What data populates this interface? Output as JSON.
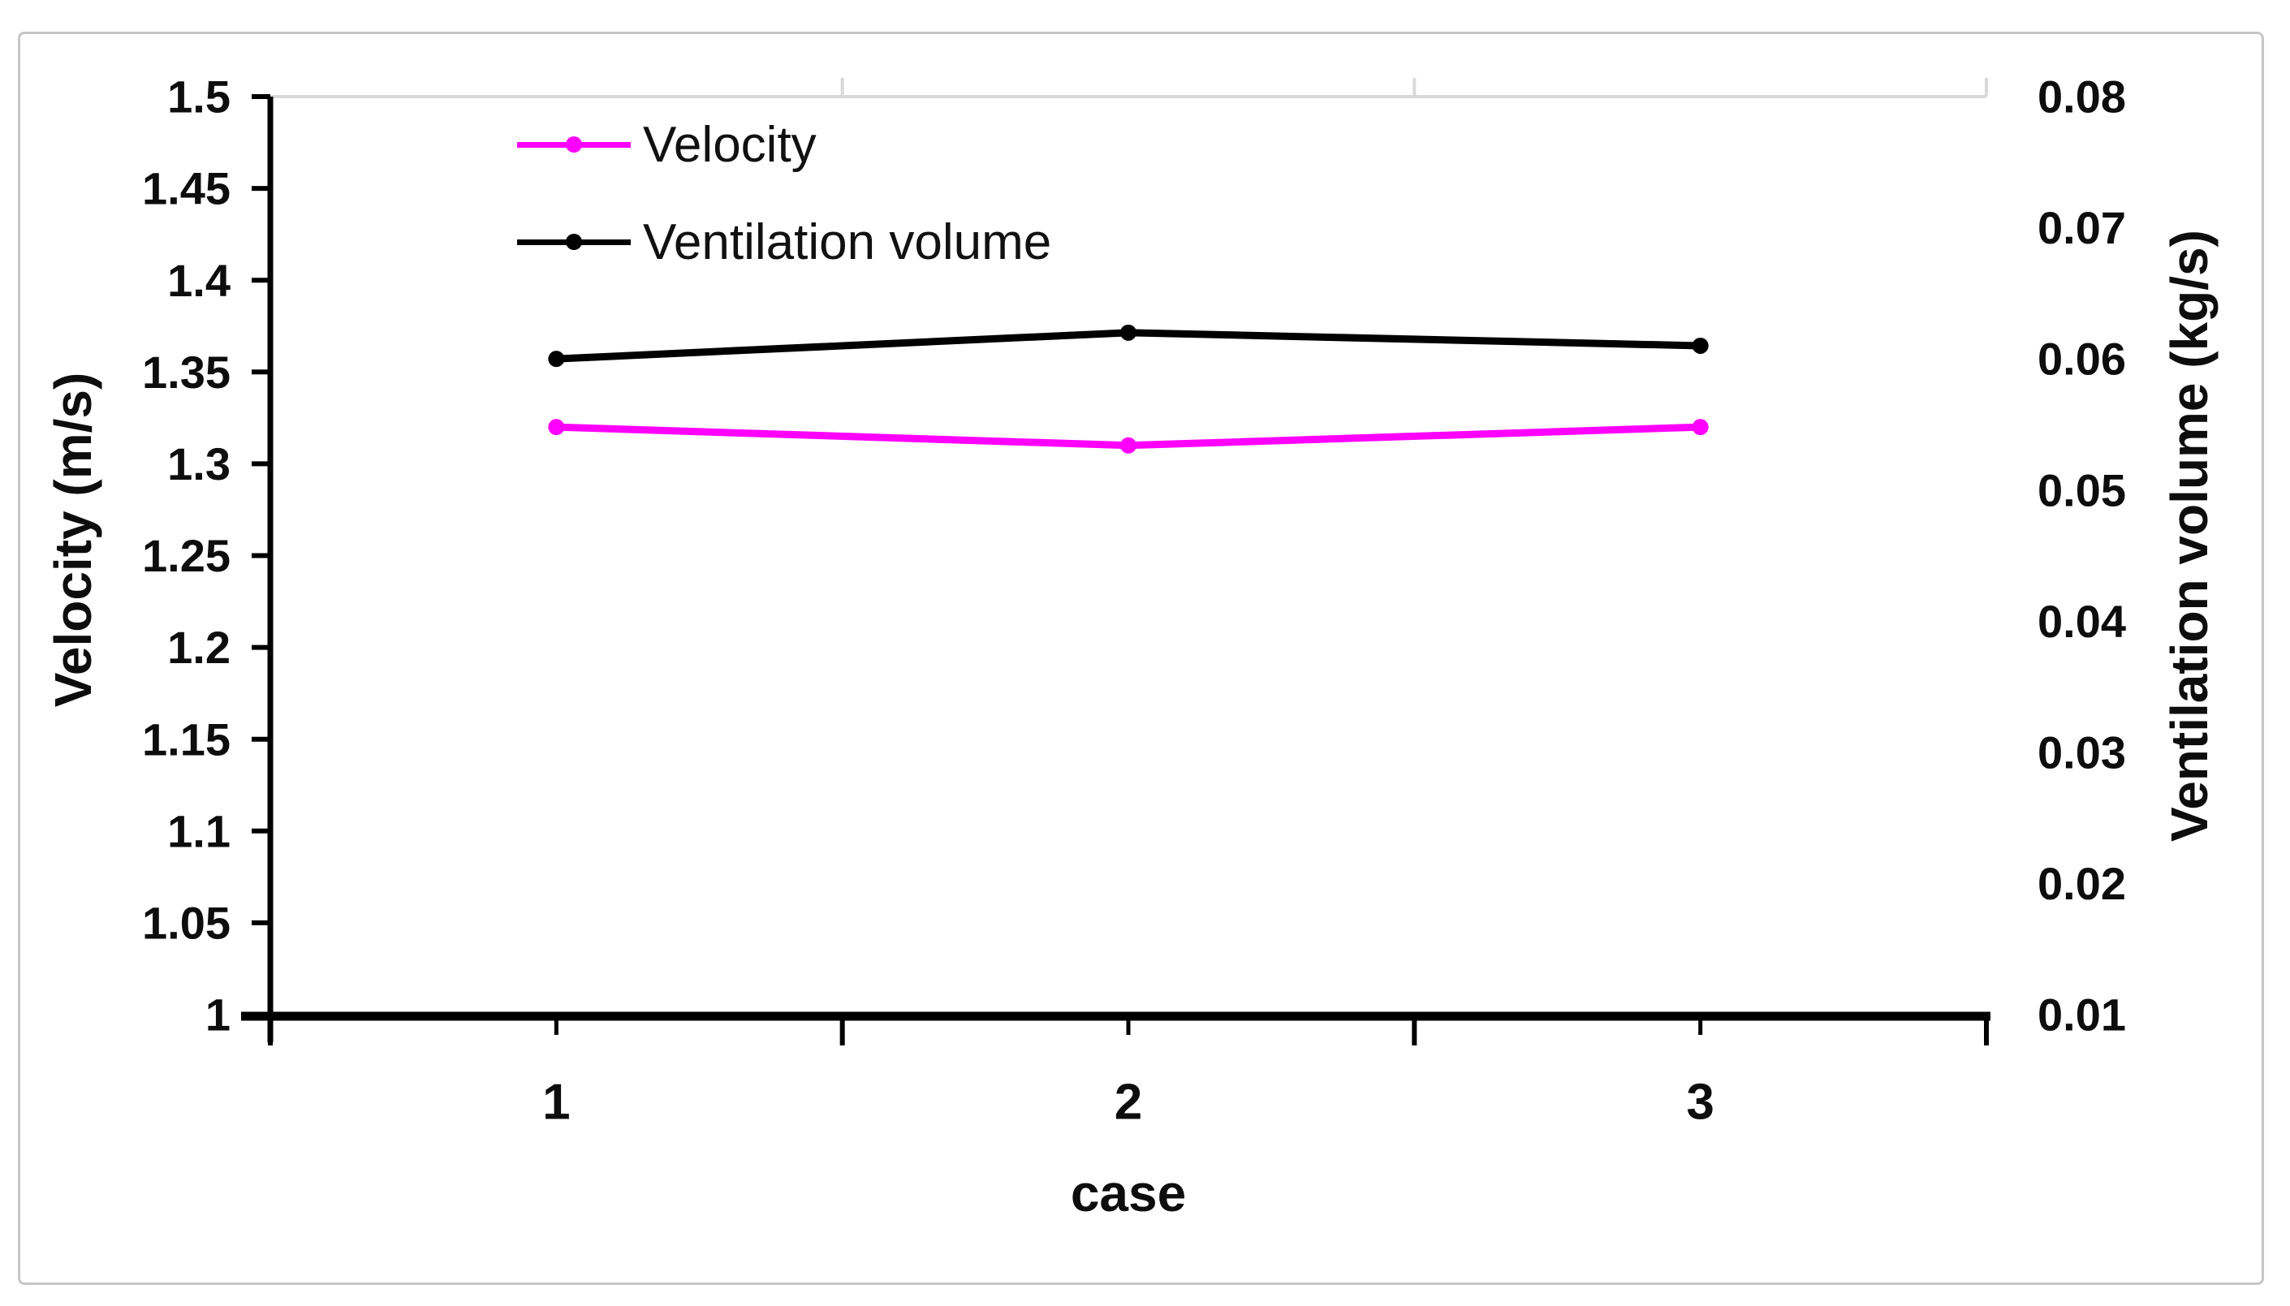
{
  "figure": {
    "frame_color": "#c6c6c6",
    "background": "#ffffff",
    "text_color": "#0d0d0d"
  },
  "chart_data": {
    "type": "line",
    "title": "",
    "categories": [
      "1",
      "2",
      "3"
    ],
    "x_axis": {
      "title": "case",
      "tick_labels": [
        "1",
        "2",
        "3"
      ]
    },
    "left_axis": {
      "title": "Velocity (m/s)",
      "min": 1.0,
      "max": 1.5,
      "step": 0.05,
      "tick_labels": [
        "1.5",
        "1.45",
        "1.4",
        "1.35",
        "1.3",
        "1.25",
        "1.2",
        "1.15",
        "1.1",
        "1.05",
        "1"
      ]
    },
    "right_axis": {
      "title": "Ventilation volume (kg/s)",
      "min": 0.01,
      "max": 0.08,
      "step": 0.01,
      "tick_labels": [
        "0.08",
        "0.07",
        "0.06",
        "0.05",
        "0.04",
        "0.03",
        "0.02",
        "0.01"
      ]
    },
    "series": [
      {
        "name": "Velocity",
        "axis": "left",
        "color": "#ff00ff",
        "marker": "circle",
        "values": [
          1.32,
          1.31,
          1.32
        ]
      },
      {
        "name": "Ventilation volume",
        "axis": "right",
        "color": "#000000",
        "marker": "circle",
        "values": [
          0.06,
          0.062,
          0.061
        ]
      }
    ],
    "legend": {
      "position": "inside-top-left",
      "items": [
        "Velocity",
        "Ventilation volume"
      ]
    },
    "grid": {
      "top_border_only": true,
      "color": "#d9d9d9"
    }
  }
}
